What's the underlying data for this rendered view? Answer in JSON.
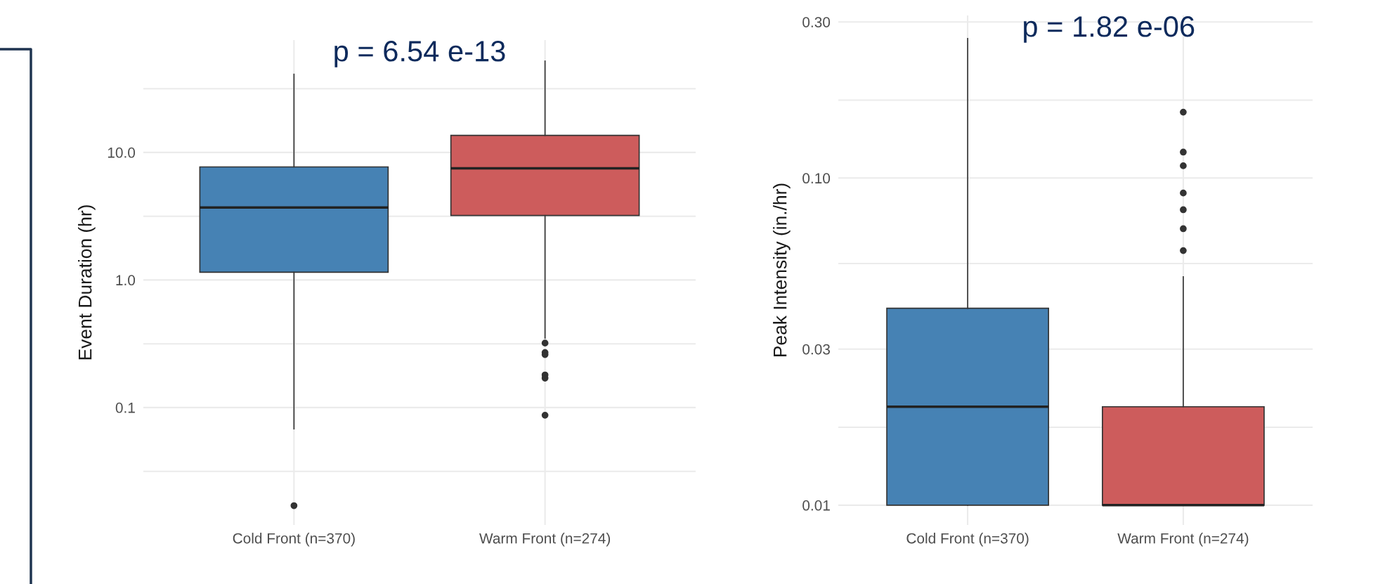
{
  "chart_data": [
    {
      "type": "box",
      "ylabel": "Event Duration (hr)",
      "log": "y",
      "grid": true,
      "categories": [
        "Cold Front (n=370)",
        "Warm Front (n=274)"
      ],
      "colors": [
        "#4682b4",
        "#cd5c5c"
      ],
      "boxes": [
        {
          "low": 0.068,
          "q1": 1.15,
          "median": 3.7,
          "q3": 7.7,
          "high": 41,
          "outliers": [
            0.017
          ]
        },
        {
          "low": 0.35,
          "q1": 3.2,
          "median": 7.5,
          "q3": 13.6,
          "high": 52,
          "outliers": [
            0.32,
            0.27,
            0.26,
            0.18,
            0.17,
            0.087
          ]
        }
      ],
      "ylim": [
        0.012,
        76
      ],
      "yticks": [
        {
          "value": 0.0316,
          "label": null
        },
        {
          "value": 0.1,
          "label": "0.1"
        },
        {
          "value": 0.316,
          "label": null
        },
        {
          "value": 1,
          "label": "1.0"
        },
        {
          "value": 3.16,
          "label": null
        },
        {
          "value": 10,
          "label": "10.0"
        },
        {
          "value": 31.6,
          "label": null
        }
      ],
      "annotations": [
        "p = 6.54 e-13"
      ]
    },
    {
      "type": "box",
      "ylabel": "Peak Intensity (in./hr)",
      "log": "y",
      "grid": true,
      "categories": [
        "Cold Front (n=370)",
        "Warm Front (n=274)"
      ],
      "colors": [
        "#4682b4",
        "#cd5c5c"
      ],
      "boxes": [
        {
          "low": 0.01,
          "q1": 0.01,
          "median": 0.02,
          "q3": 0.04,
          "high": 0.267
        },
        {
          "low": 0.01,
          "q1": 0.01,
          "median": 0.01,
          "q3": 0.02,
          "high": 0.0499,
          "outliers": [
            0.159,
            0.12,
            0.109,
            0.09,
            0.08,
            0.07,
            0.06
          ]
        }
      ],
      "ylim": [
        0.0087,
        0.314
      ],
      "yticks": [
        {
          "value": 0.01,
          "label": "0.01"
        },
        {
          "value": 0.0173,
          "label": null
        },
        {
          "value": 0.03,
          "label": "0.03"
        },
        {
          "value": 0.0548,
          "label": null
        },
        {
          "value": 0.1,
          "label": "0.10"
        },
        {
          "value": 0.173,
          "label": null
        },
        {
          "value": 0.3,
          "label": "0.30"
        }
      ],
      "annotations": [
        "p = 1.82 e-06"
      ]
    }
  ]
}
